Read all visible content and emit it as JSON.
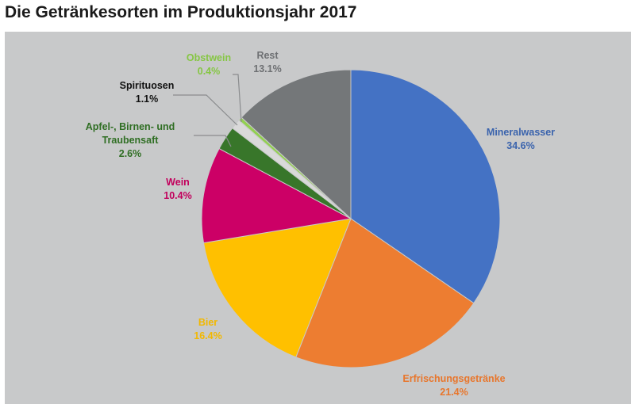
{
  "page": {
    "title": "Die Getränkesorten im Produktionsjahr 2017"
  },
  "chart_data": {
    "type": "pie",
    "title": "Die Getränkesorten im Produktionsjahr 2017",
    "unit": "%",
    "slices": [
      {
        "name": "Mineralwasser",
        "lines": [
          "Mineralwasser"
        ],
        "value": 34.6,
        "label": "34.6%",
        "color": "#4472c4",
        "label_color": "#3a63ad"
      },
      {
        "name": "Erfrischungsgetränke",
        "lines": [
          "Erfrischungsgetränke"
        ],
        "value": 21.4,
        "label": "21.4%",
        "color": "#ed7d31",
        "label_color": "#e8762c"
      },
      {
        "name": "Bier",
        "lines": [
          "Bier"
        ],
        "value": 16.4,
        "label": "16.4%",
        "color": "#ffc000",
        "label_color": "#f2b800"
      },
      {
        "name": "Wein",
        "lines": [
          "Wein"
        ],
        "value": 10.4,
        "label": "10.4%",
        "color": "#cc0066",
        "label_color": "#c2005c"
      },
      {
        "name": "Apfel-, Birnen- und Traubensaft",
        "lines": [
          "Apfel-, Birnen- und",
          "Traubensaft"
        ],
        "value": 2.6,
        "label": "2.6%",
        "color": "#38762a",
        "label_color": "#2f6e23"
      },
      {
        "name": "Spirituosen",
        "lines": [
          "Spirituosen"
        ],
        "value": 1.1,
        "label": "1.1%",
        "color": "#d9d9d9",
        "label_color": "#111111"
      },
      {
        "name": "Obstwein",
        "lines": [
          "Obstwein"
        ],
        "value": 0.4,
        "label": "0.4%",
        "color": "#92d050",
        "label_color": "#86c644"
      },
      {
        "name": "Rest",
        "lines": [
          "Rest"
        ],
        "value": 13.1,
        "label": "13.1%",
        "color": "#747779",
        "label_color": "#6e7073"
      }
    ],
    "start_angle": "12 o'clock",
    "direction": "clockwise",
    "legend": "none",
    "data_labels": "outside"
  }
}
